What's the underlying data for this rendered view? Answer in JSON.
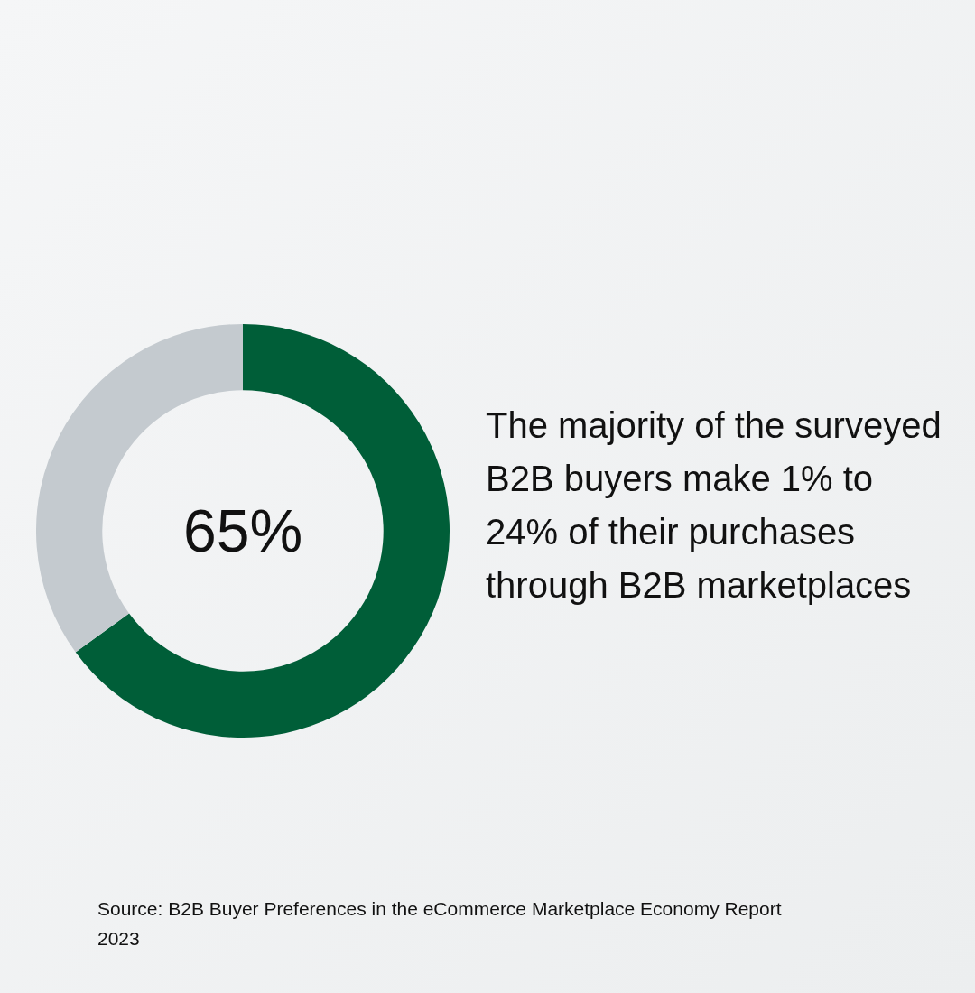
{
  "chart_data": {
    "type": "donut",
    "categories": [
      null,
      null
    ],
    "values": [
      65,
      35
    ],
    "colors": [
      "#005e38",
      "#c4cacf"
    ],
    "value_labels": [
      "65%",
      null
    ],
    "legend": false,
    "annotations": [
      "The majority of the surveyed B2B buyers make 1% to 24% of their purchases through B2B marketplaces",
      "Source: B2B Buyer Preferences in the eCommerce Marketplace Economy Report 2023"
    ]
  }
}
